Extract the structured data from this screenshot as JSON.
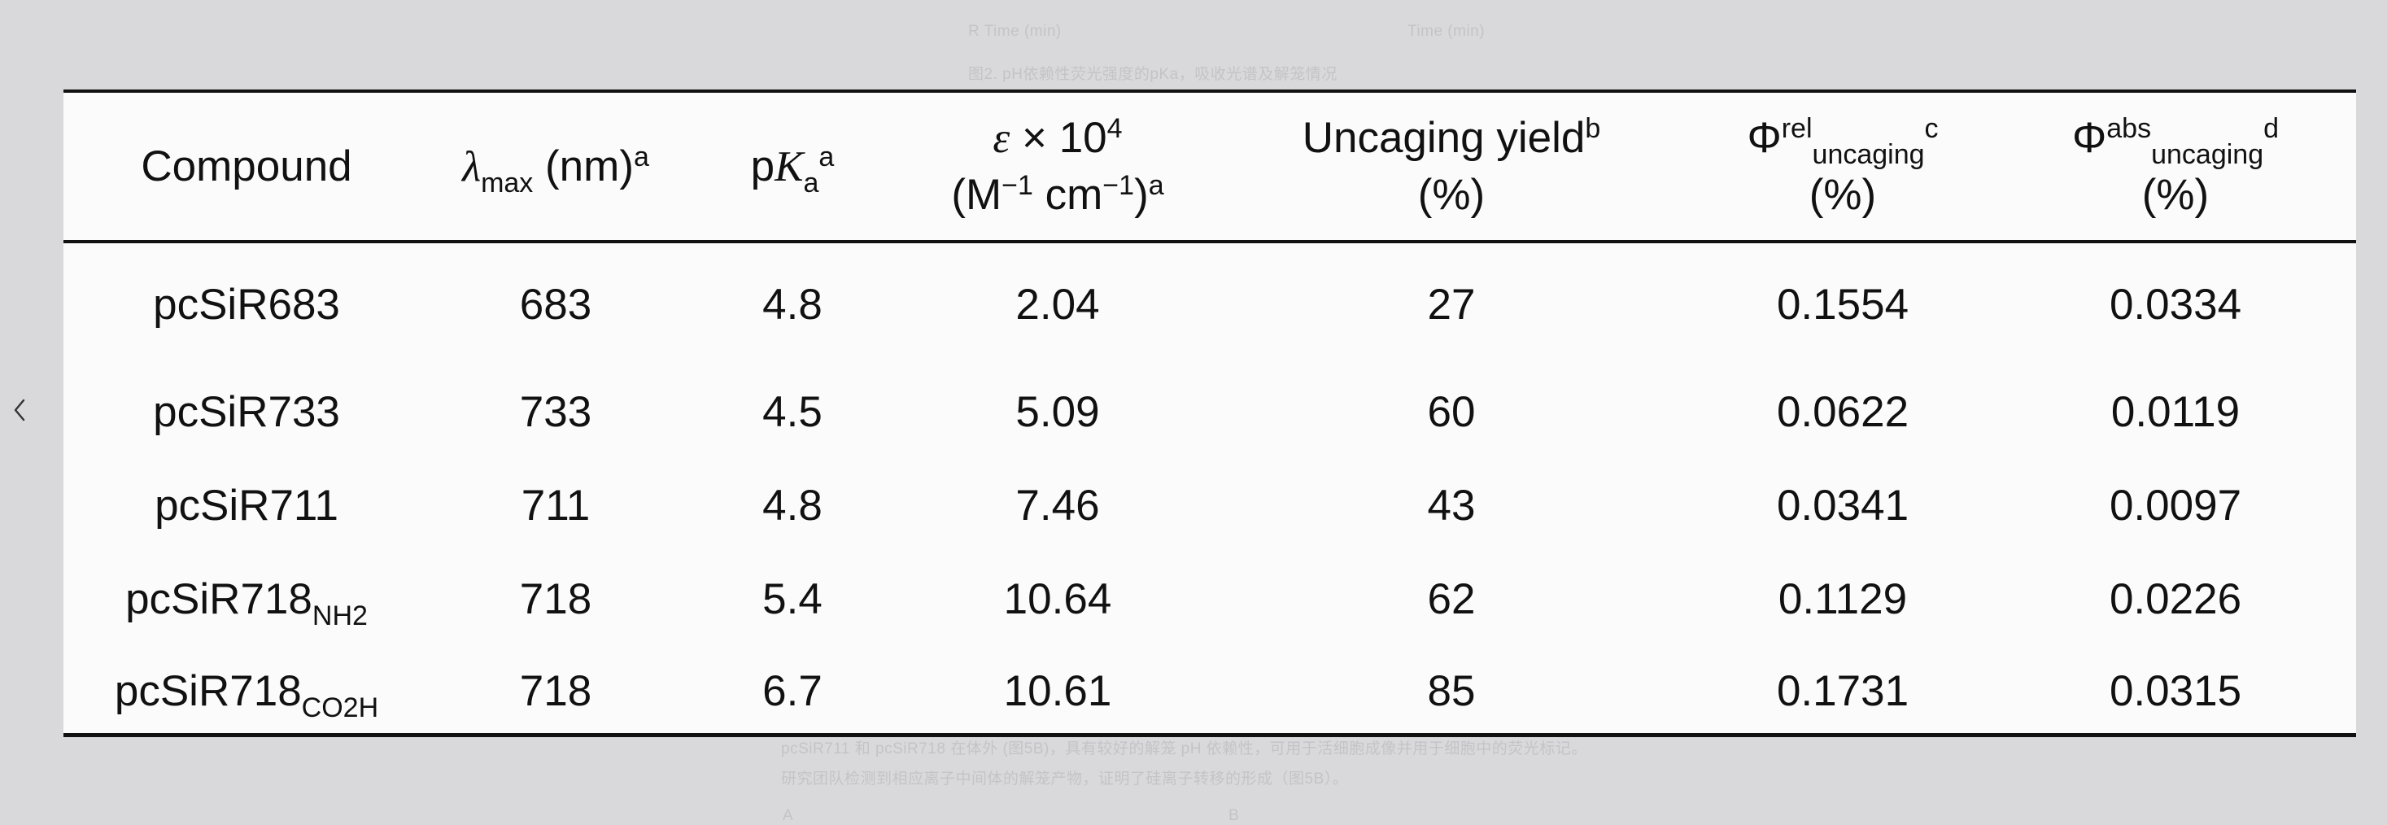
{
  "background_text": {
    "axis_label_left": "R Time (min)",
    "axis_label_right": "Time (min)",
    "figure_caption": "图2. pH依赖性荧光强度的pKa，吸收光谱及解笼情况",
    "body_line_1": "pcSiR711 和 pcSiR718 在体外 (图5B)，具有较好的解笼 pH 依赖性，可用于活细胞成像并用于细胞中的荧光标记。",
    "body_line_2": "研究团队检测到相应离子中间体的解笼产物，证明了硅离子转移的形成（图5B）。",
    "panel_label_a": "A",
    "panel_label_b": "B"
  },
  "nav": {
    "prev_icon": "chevron-left-icon",
    "prev_glyph": "‹"
  },
  "table": {
    "headers": {
      "compound": "Compound",
      "lambda_symbol": "λ",
      "lambda_sub": "max",
      "lambda_unit": " (nm)",
      "lambda_note": "a",
      "pka_p": "p",
      "pka_k": "K",
      "pka_sub": "a",
      "pka_note": "a",
      "eps_symbol": "ε",
      "eps_times": " × 10",
      "eps_exp": "4",
      "eps_unit_1": "(M",
      "eps_unit_exp1": "−1",
      "eps_unit_2": " cm",
      "eps_unit_exp2": "−1",
      "eps_unit_3": ")",
      "eps_note": "a",
      "yield_label": "Uncaging yield",
      "yield_note": "b",
      "yield_unit": "(%)",
      "phi_rel_symbol": "Φ",
      "phi_rel_sup": "rel",
      "phi_rel_sub": "uncaging",
      "phi_rel_note": "c",
      "phi_rel_unit": "(%)",
      "phi_abs_symbol": "Φ",
      "phi_abs_sup": "abs",
      "phi_abs_sub": "uncaging",
      "phi_abs_note": "d",
      "phi_abs_unit": "(%)"
    },
    "rows": [
      {
        "compound": "pcSiR683",
        "compound_sub": "",
        "lambda_max": "683",
        "pka": "4.8",
        "epsilon": "2.04",
        "uncaging_yield": "27",
        "phi_rel": "0.1554",
        "phi_abs": "0.0334"
      },
      {
        "compound": "pcSiR733",
        "compound_sub": "",
        "lambda_max": "733",
        "pka": "4.5",
        "epsilon": "5.09",
        "uncaging_yield": "60",
        "phi_rel": "0.0622",
        "phi_abs": "0.0119"
      },
      {
        "compound": "pcSiR711",
        "compound_sub": "",
        "lambda_max": "711",
        "pka": "4.8",
        "epsilon": "7.46",
        "uncaging_yield": "43",
        "phi_rel": "0.0341",
        "phi_abs": "0.0097"
      },
      {
        "compound": "pcSiR718",
        "compound_sub": "NH2",
        "lambda_max": "718",
        "pka": "5.4",
        "epsilon": "10.64",
        "uncaging_yield": "62",
        "phi_rel": "0.1129",
        "phi_abs": "0.0226"
      },
      {
        "compound": "pcSiR718",
        "compound_sub": "CO2H",
        "lambda_max": "718",
        "pka": "6.7",
        "epsilon": "10.61",
        "uncaging_yield": "85",
        "phi_rel": "0.1731",
        "phi_abs": "0.0315"
      }
    ]
  }
}
